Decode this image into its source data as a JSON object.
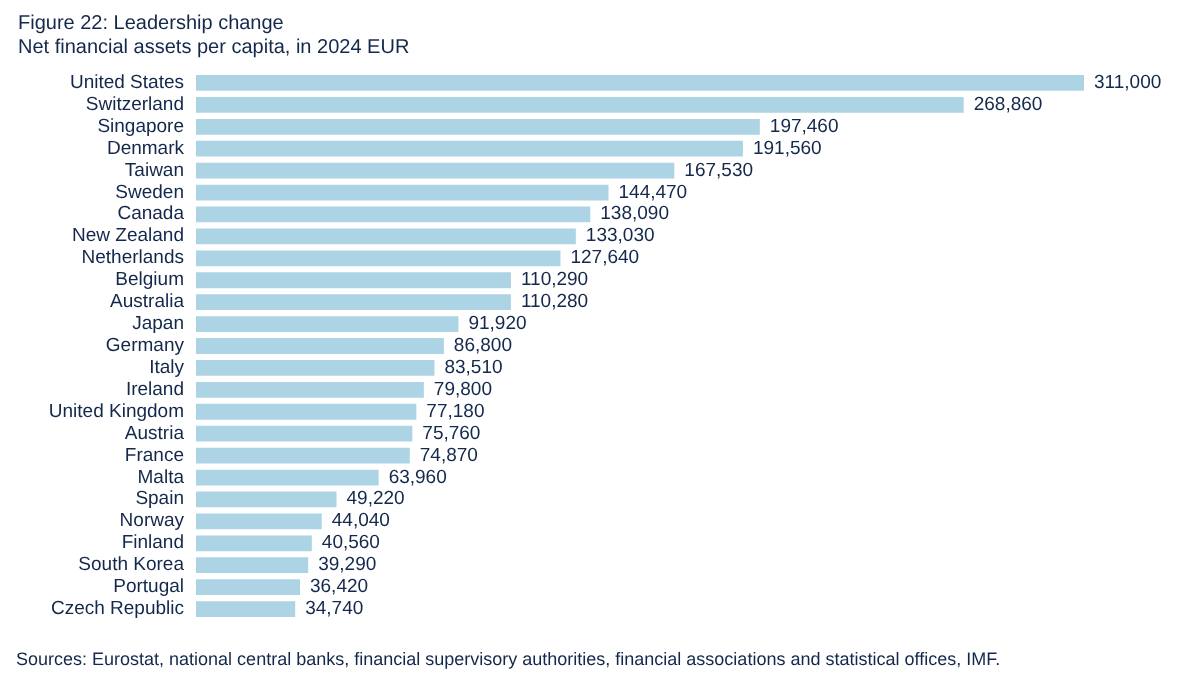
{
  "chart_data": {
    "type": "bar",
    "orientation": "horizontal",
    "title": "Figure 22: Leadership change",
    "subtitle": "Net financial assets per capita, in 2024 EUR",
    "categories": [
      "United States",
      "Switzerland",
      "Singapore",
      "Denmark",
      "Taiwan",
      "Sweden",
      "Canada",
      "New Zealand",
      "Netherlands",
      "Belgium",
      "Australia",
      "Japan",
      "Germany",
      "Italy",
      "Ireland",
      "United Kingdom",
      "Austria",
      "France",
      "Malta",
      "Spain",
      "Norway",
      "Finland",
      "South Korea",
      "Portugal",
      "Czech Republic"
    ],
    "values": [
      311000,
      268860,
      197460,
      191560,
      167530,
      144470,
      138090,
      133030,
      127640,
      110290,
      110280,
      91920,
      86800,
      83510,
      79800,
      77180,
      75760,
      74870,
      63960,
      49220,
      44040,
      40560,
      39290,
      36420,
      34740
    ],
    "value_labels": [
      "311,000",
      "268,860",
      "197,460",
      "191,560",
      "167,530",
      "144,470",
      "138,090",
      "133,030",
      "127,640",
      "110,290",
      "110,280",
      "91,920",
      "86,800",
      "83,510",
      "79,800",
      "77,180",
      "75,760",
      "74,870",
      "63,960",
      "49,220",
      "44,040",
      "40,560",
      "39,290",
      "36,420",
      "34,740"
    ],
    "color": "#acd4e5",
    "annotations": [
      "Sources: Eurostat, national central banks, financial supervisory authorities, financial associations and statistical offices, IMF."
    ]
  }
}
